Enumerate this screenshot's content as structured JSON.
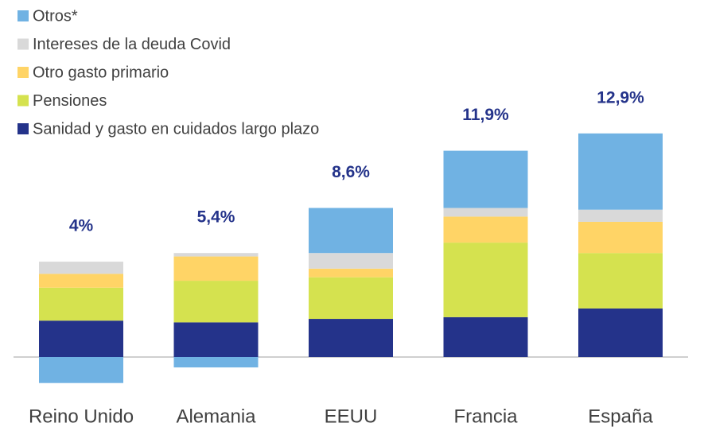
{
  "chart_data": {
    "type": "stacked_bar",
    "categories": [
      "Reino Unido",
      "Alemania",
      "EEUU",
      "Francia",
      "España"
    ],
    "series": [
      {
        "name": "Sanidad y gasto en cuidados largo plazo",
        "color": "#24338a",
        "values": [
          2.1,
          2.0,
          2.2,
          2.3,
          2.8
        ]
      },
      {
        "name": "Pensiones",
        "color": "#d5e24f",
        "values": [
          1.9,
          2.4,
          2.4,
          4.3,
          3.2
        ]
      },
      {
        "name": "Otro gasto primario",
        "color": "#ffd466",
        "values": [
          0.8,
          1.4,
          0.5,
          1.5,
          1.8
        ]
      },
      {
        "name": "Intereses de la deuda Covid",
        "color": "#d9d9d9",
        "values": [
          0.7,
          0.2,
          0.9,
          0.5,
          0.7
        ]
      },
      {
        "name": "Otros*",
        "color": "#70b2e3",
        "values": [
          -1.5,
          -0.6,
          2.6,
          3.3,
          4.4
        ]
      }
    ],
    "totals": [
      4,
      5.4,
      8.6,
      11.9,
      12.9
    ],
    "total_labels": [
      "4%",
      "5,4%",
      "8,6%",
      "11,9%",
      "12,9%"
    ],
    "total_color": "#24338a"
  }
}
